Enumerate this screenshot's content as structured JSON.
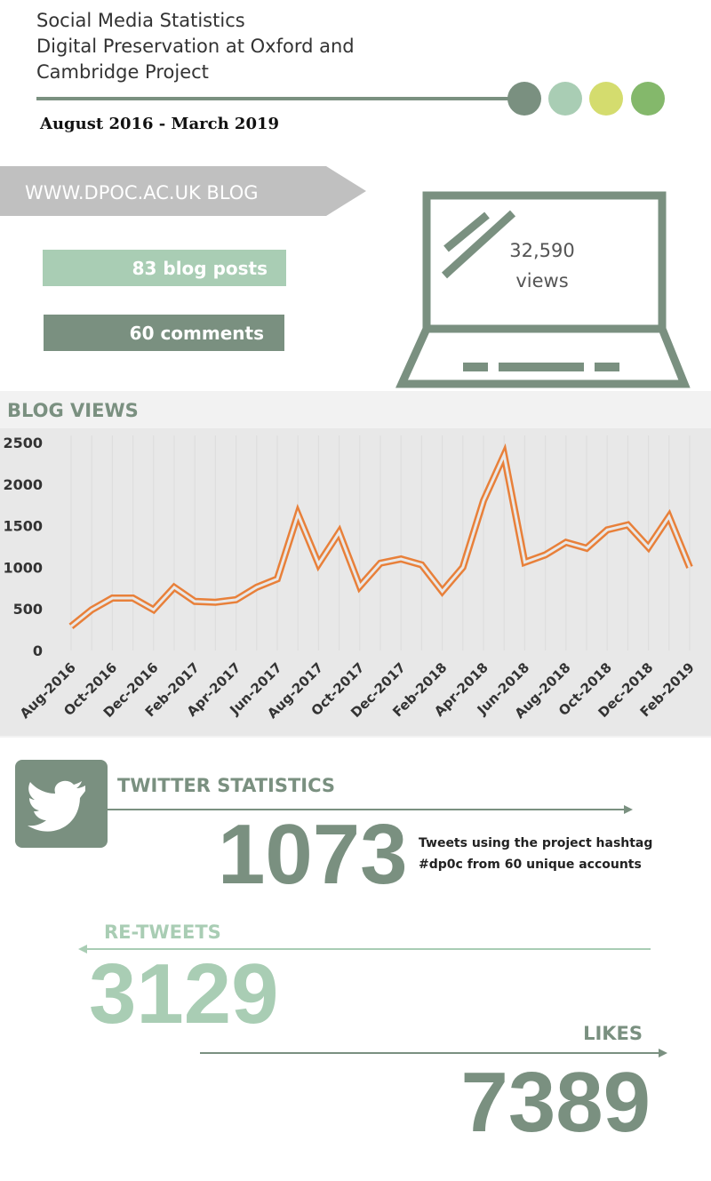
{
  "header": {
    "title_lines": [
      "Social Media Statistics",
      "Digital Preservation at Oxford and",
      "Cambridge Project"
    ],
    "date_range": "August 2016 - March 2019"
  },
  "blog": {
    "label": "WWW.DPOC.AC.UK BLOG",
    "posts": "83 blog posts",
    "comments": "60 comments",
    "views_count": "32,590",
    "views_unit": "views"
  },
  "chart_data": {
    "type": "line",
    "title": "BLOG VIEWS",
    "categories": [
      "Aug-2016",
      null,
      "Oct-2016",
      null,
      "Dec-2016",
      null,
      "Feb-2017",
      null,
      "Apr-2017",
      null,
      "Jun-2017",
      null,
      "Aug-2017",
      null,
      "Oct-2017",
      null,
      "Dec-2017",
      null,
      "Feb-2018",
      null,
      "Apr-2018",
      null,
      "Jun-2018",
      null,
      "Aug-2018",
      null,
      "Oct-2018",
      null,
      "Dec-2018",
      null,
      "Feb-2019"
    ],
    "values": [
      290,
      490,
      630,
      630,
      490,
      760,
      590,
      580,
      610,
      760,
      860,
      1640,
      1040,
      1420,
      770,
      1050,
      1100,
      1030,
      710,
      1000,
      1800,
      2350,
      1060,
      1150,
      1300,
      1230,
      1450,
      1510,
      1240,
      1610,
      1000
    ],
    "color": "#e8803a",
    "ylim": [
      0,
      2500
    ],
    "yticks": [
      0,
      500,
      1000,
      1500,
      2000,
      2500
    ],
    "grid": false
  },
  "twitter": {
    "title": "TWITTER STATISTICS",
    "tweets": 1073,
    "tweets_desc_lines": [
      "Tweets using the project hashtag",
      "#dp0c from 60 unique accounts"
    ],
    "retweets_label": "RE-TWEETS",
    "retweets": 3129,
    "likes_label": "LIKES",
    "likes": 7389
  }
}
